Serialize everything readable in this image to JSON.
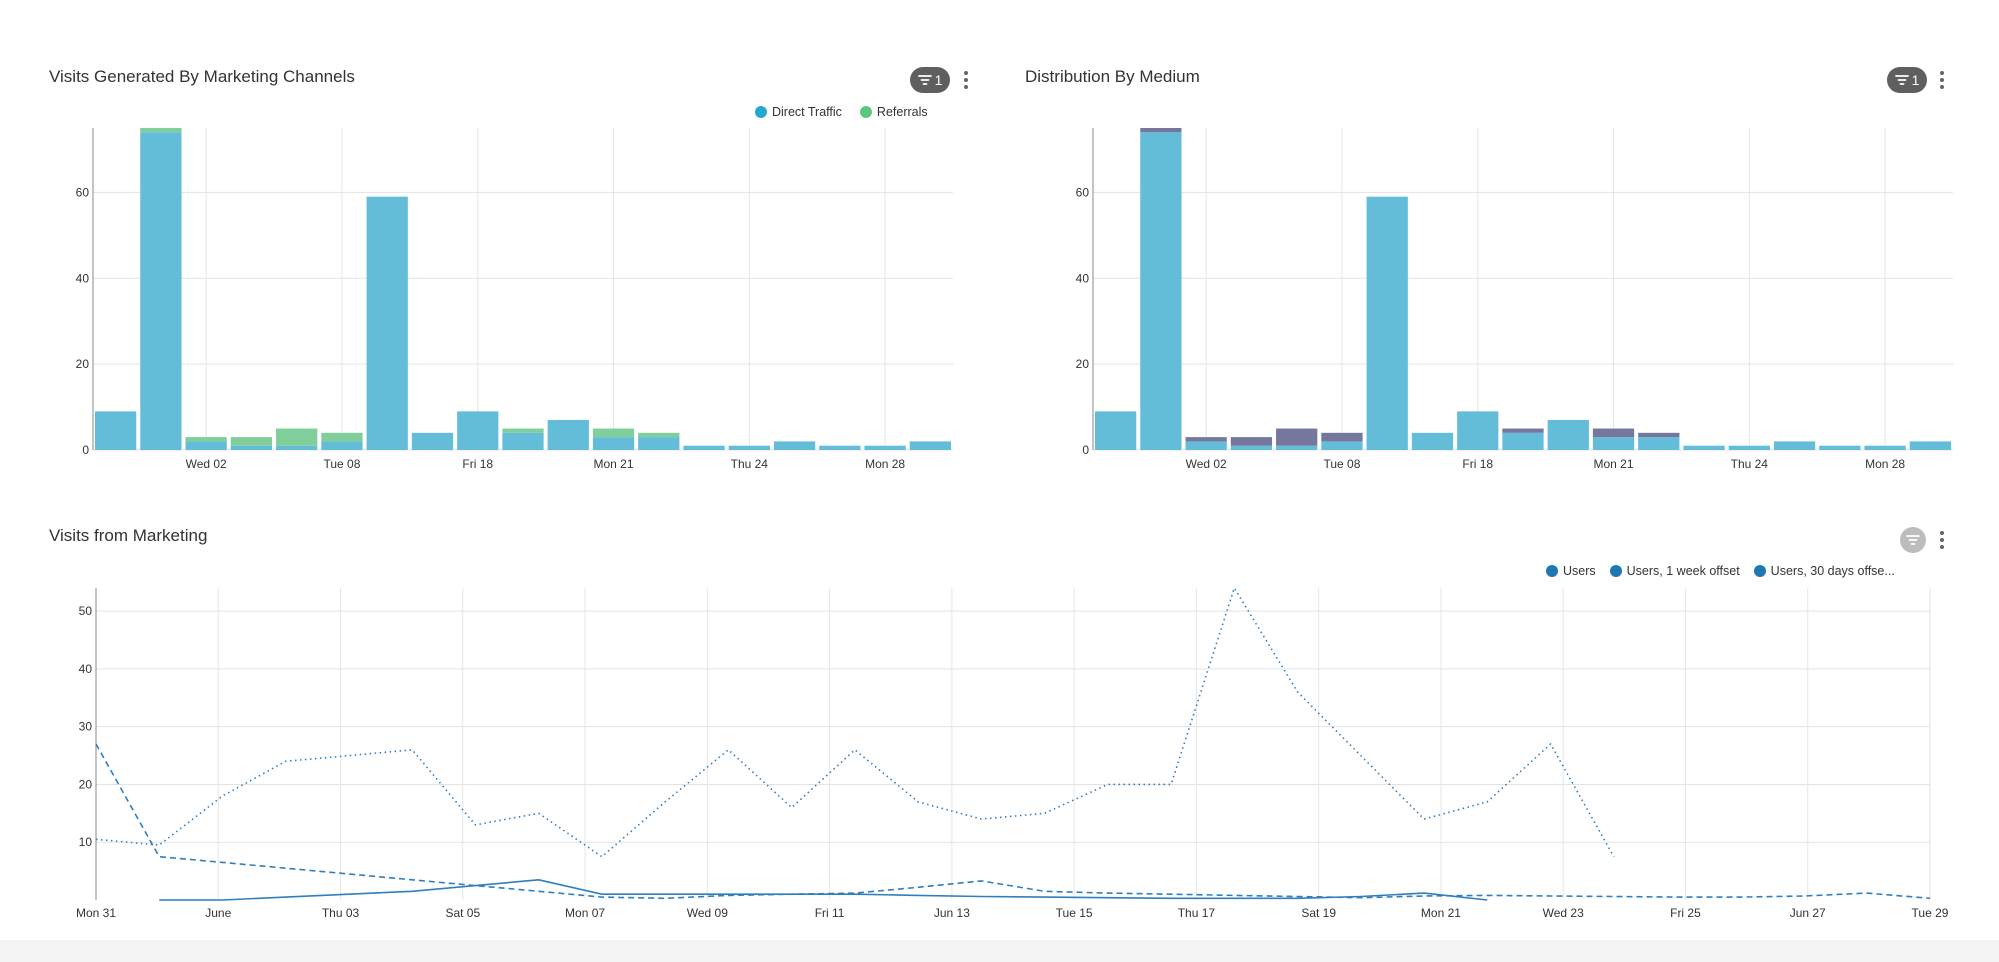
{
  "panels": {
    "channels": {
      "title": "Visits Generated By Marketing Channels",
      "filter_count": "1"
    },
    "medium": {
      "title": "Distribution By Medium",
      "filter_count": "1"
    },
    "marketing": {
      "title": "Visits from Marketing",
      "filter_count": ""
    }
  },
  "icons": {
    "filter": "filter-icon",
    "menu": "more-vertical-icon"
  },
  "colors": {
    "direct": "#63bdd8",
    "referrals": "#80cf9a",
    "medium_other": "#75789c",
    "users": "#2f7fbf",
    "filter_active": "#5f5f5f",
    "filter_inactive": "#bdbdbd"
  },
  "chart_data": [
    {
      "type": "bar",
      "stacked": true,
      "title": "Visits Generated By Marketing Channels",
      "legend_position": "top-right",
      "grid": true,
      "ylim": [
        0,
        75
      ],
      "y_ticks": [
        0,
        20,
        40,
        60
      ],
      "x_tick_labels": [
        {
          "label": "Wed 02",
          "index": 2.5
        },
        {
          "label": "Tue 08",
          "index": 5.5
        },
        {
          "label": "Fri 18",
          "index": 8.5
        },
        {
          "label": "Mon 21",
          "index": 11.5
        },
        {
          "label": "Thu 24",
          "index": 14.5
        },
        {
          "label": "Mon 28",
          "index": 17.5
        }
      ],
      "bar_count": 19,
      "series": [
        {
          "name": "Direct Traffic",
          "color": "#63bdd8",
          "values": [
            9,
            74,
            2,
            1,
            1,
            2,
            59,
            4,
            9,
            4,
            7,
            3,
            3,
            1,
            1,
            2,
            1,
            1,
            2
          ]
        },
        {
          "name": "Referrals",
          "color": "#80cf9a",
          "values": [
            0,
            1,
            1,
            2,
            4,
            2,
            0,
            0,
            0,
            1,
            0,
            2,
            1,
            0,
            0,
            0,
            0,
            0,
            0
          ]
        }
      ]
    },
    {
      "type": "bar",
      "stacked": true,
      "title": "Distribution By Medium",
      "grid": true,
      "ylim": [
        0,
        75
      ],
      "y_ticks": [
        0,
        20,
        40,
        60
      ],
      "x_tick_labels": [
        {
          "label": "Wed 02",
          "index": 2.5
        },
        {
          "label": "Tue 08",
          "index": 5.5
        },
        {
          "label": "Fri 18",
          "index": 8.5
        },
        {
          "label": "Mon 21",
          "index": 11.5
        },
        {
          "label": "Thu 24",
          "index": 14.5
        },
        {
          "label": "Mon 28",
          "index": 17.5
        }
      ],
      "bar_count": 19,
      "series": [
        {
          "color": "#63bdd8",
          "values": [
            9,
            74,
            2,
            1,
            1,
            2,
            59,
            4,
            9,
            4,
            7,
            3,
            3,
            1,
            1,
            2,
            1,
            1,
            2
          ]
        },
        {
          "color": "#75789c",
          "values": [
            0,
            1,
            1,
            2,
            4,
            2,
            0,
            0,
            0,
            1,
            0,
            2,
            1,
            0,
            0,
            0,
            0,
            0,
            0
          ]
        }
      ]
    },
    {
      "type": "line",
      "title": "Visits from Marketing",
      "legend_position": "top-right",
      "grid": true,
      "ylim": [
        0,
        54
      ],
      "y_ticks": [
        10,
        20,
        30,
        40,
        50
      ],
      "x_tick_labels": [
        "Mon 31",
        "June",
        "Thu 03",
        "Sat 05",
        "Mon 07",
        "Wed 09",
        "Fri 11",
        "Jun 13",
        "Tue 15",
        "Thu 17",
        "Sat 19",
        "Mon 21",
        "Wed 23",
        "Fri 25",
        "Jun 27",
        "Tue 29"
      ],
      "x_range": [
        0,
        29
      ],
      "series": [
        {
          "name": "Users",
          "style": "solid",
          "color": "#2f7fbf",
          "x": [
            1,
            2,
            3,
            4,
            5,
            6,
            7,
            8,
            9,
            10,
            11,
            12,
            13,
            14,
            15,
            16,
            17,
            18,
            19,
            20,
            21,
            22
          ],
          "y": [
            0,
            0,
            0.5,
            1,
            1.5,
            2.5,
            3.5,
            1,
            1,
            1,
            1,
            1,
            0.8,
            0.6,
            0.5,
            0.4,
            0.3,
            0.3,
            0.3,
            0.6,
            1.2,
            0
          ]
        },
        {
          "name": "Users, 1 week offset",
          "style": "dashed",
          "color": "#2f7fbf",
          "x": [
            0,
            1,
            2,
            3,
            4,
            5,
            6,
            7,
            8,
            9,
            10,
            11,
            12,
            13,
            14,
            15,
            16,
            17,
            18,
            19,
            20,
            21,
            22,
            23,
            24,
            25,
            26,
            27,
            28,
            29
          ],
          "y": [
            27,
            7.5,
            6.5,
            5.5,
            4.5,
            3.5,
            2.5,
            1.5,
            0.5,
            0.3,
            0.8,
            1,
            1.2,
            2.2,
            3.3,
            1.5,
            1.2,
            1,
            0.8,
            0.6,
            0.4,
            0.7,
            0.8,
            0.7,
            0.6,
            0.5,
            0.5,
            0.7,
            1.2,
            0.3
          ]
        },
        {
          "name": "Users, 30 days offse...",
          "style": "dotted",
          "color": "#2f7fbf",
          "x": [
            0,
            1,
            2,
            3,
            4,
            5,
            6,
            7,
            8,
            9,
            10,
            11,
            12,
            13,
            14,
            15,
            16,
            17,
            18,
            19,
            20,
            21,
            22,
            23,
            24
          ],
          "y": [
            10.5,
            9.5,
            18,
            24,
            25,
            26,
            13,
            15,
            7.5,
            17,
            26,
            16,
            26,
            17,
            14,
            15,
            20,
            20,
            54,
            36,
            25,
            14,
            17,
            27,
            7.5
          ]
        }
      ]
    }
  ]
}
